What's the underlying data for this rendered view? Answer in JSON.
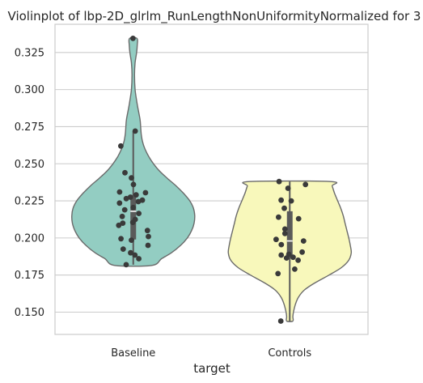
{
  "chart_data": {
    "type": "violin",
    "title": "Violinplot of lbp-2D_glrlm_RunLengthNonUniformityNormalized for 3",
    "xlabel": "target",
    "ylabel": "",
    "categories": [
      "Baseline",
      "Controls"
    ],
    "ylim": [
      0.135,
      0.344
    ],
    "yticks": [
      0.15,
      0.175,
      0.2,
      0.225,
      0.25,
      0.275,
      0.3,
      0.325
    ],
    "ytick_labels": [
      "0.150",
      "0.175",
      "0.200",
      "0.225",
      "0.250",
      "0.275",
      "0.300",
      "0.325"
    ],
    "grid": "horizontal",
    "colors": {
      "Baseline": "#93cdc2",
      "Controls": "#f8f8bb",
      "outline": "#6a6a6a",
      "points": "#3a3a3a",
      "grid": "#cccccc",
      "frame": "#cccccc",
      "inner_box": "#5a5a5a",
      "median": "#ffffff"
    },
    "series": [
      {
        "name": "Baseline",
        "points": [
          0.3345,
          0.272,
          0.262,
          0.244,
          0.2405,
          0.236,
          0.231,
          0.2305,
          0.229,
          0.2275,
          0.2265,
          0.2255,
          0.2245,
          0.2235,
          0.2205,
          0.219,
          0.2165,
          0.2145,
          0.2125,
          0.2105,
          0.21,
          0.2085,
          0.205,
          0.201,
          0.1995,
          0.1985,
          0.195,
          0.1925,
          0.19,
          0.1885,
          0.186,
          0.182
        ],
        "box": {
          "q1": 0.199,
          "median": 0.218,
          "q3": 0.229,
          "whisker_low": 0.182,
          "whisker_high": 0.272
        },
        "violin": {
          "y": [
            0.1815,
            0.186,
            0.19,
            0.195,
            0.2,
            0.205,
            0.21,
            0.215,
            0.22,
            0.225,
            0.23,
            0.235,
            0.24,
            0.245,
            0.25,
            0.255,
            0.26,
            0.265,
            0.27,
            0.275,
            0.28,
            0.29,
            0.3,
            0.31,
            0.318,
            0.325,
            0.33,
            0.3345
          ],
          "halfwidth": [
            0.3,
            0.46,
            0.62,
            0.77,
            0.88,
            0.95,
            0.99,
            1.0,
            0.98,
            0.92,
            0.82,
            0.7,
            0.56,
            0.43,
            0.33,
            0.25,
            0.19,
            0.15,
            0.13,
            0.12,
            0.11,
            0.065,
            0.03,
            0.02,
            0.03,
            0.055,
            0.065,
            0.06
          ]
        }
      },
      {
        "name": "Controls",
        "points": [
          0.238,
          0.236,
          0.2335,
          0.2255,
          0.225,
          0.22,
          0.214,
          0.213,
          0.206,
          0.203,
          0.199,
          0.198,
          0.1955,
          0.1905,
          0.189,
          0.1885,
          0.187,
          0.1865,
          0.185,
          0.179,
          0.176,
          0.144
        ],
        "box": {
          "q1": 0.187,
          "median": 0.198,
          "q3": 0.218,
          "whisker_low": 0.144,
          "whisker_high": 0.238
        },
        "violin": {
          "y": [
            0.144,
            0.147,
            0.15,
            0.155,
            0.16,
            0.165,
            0.17,
            0.175,
            0.18,
            0.185,
            0.19,
            0.195,
            0.2,
            0.205,
            0.21,
            0.215,
            0.22,
            0.225,
            0.23,
            0.235,
            0.238
          ],
          "halfwidth": [
            0.05,
            0.05,
            0.06,
            0.09,
            0.14,
            0.24,
            0.42,
            0.64,
            0.84,
            0.96,
            1.0,
            0.985,
            0.96,
            0.93,
            0.9,
            0.87,
            0.83,
            0.78,
            0.73,
            0.69,
            0.66
          ]
        }
      }
    ]
  }
}
